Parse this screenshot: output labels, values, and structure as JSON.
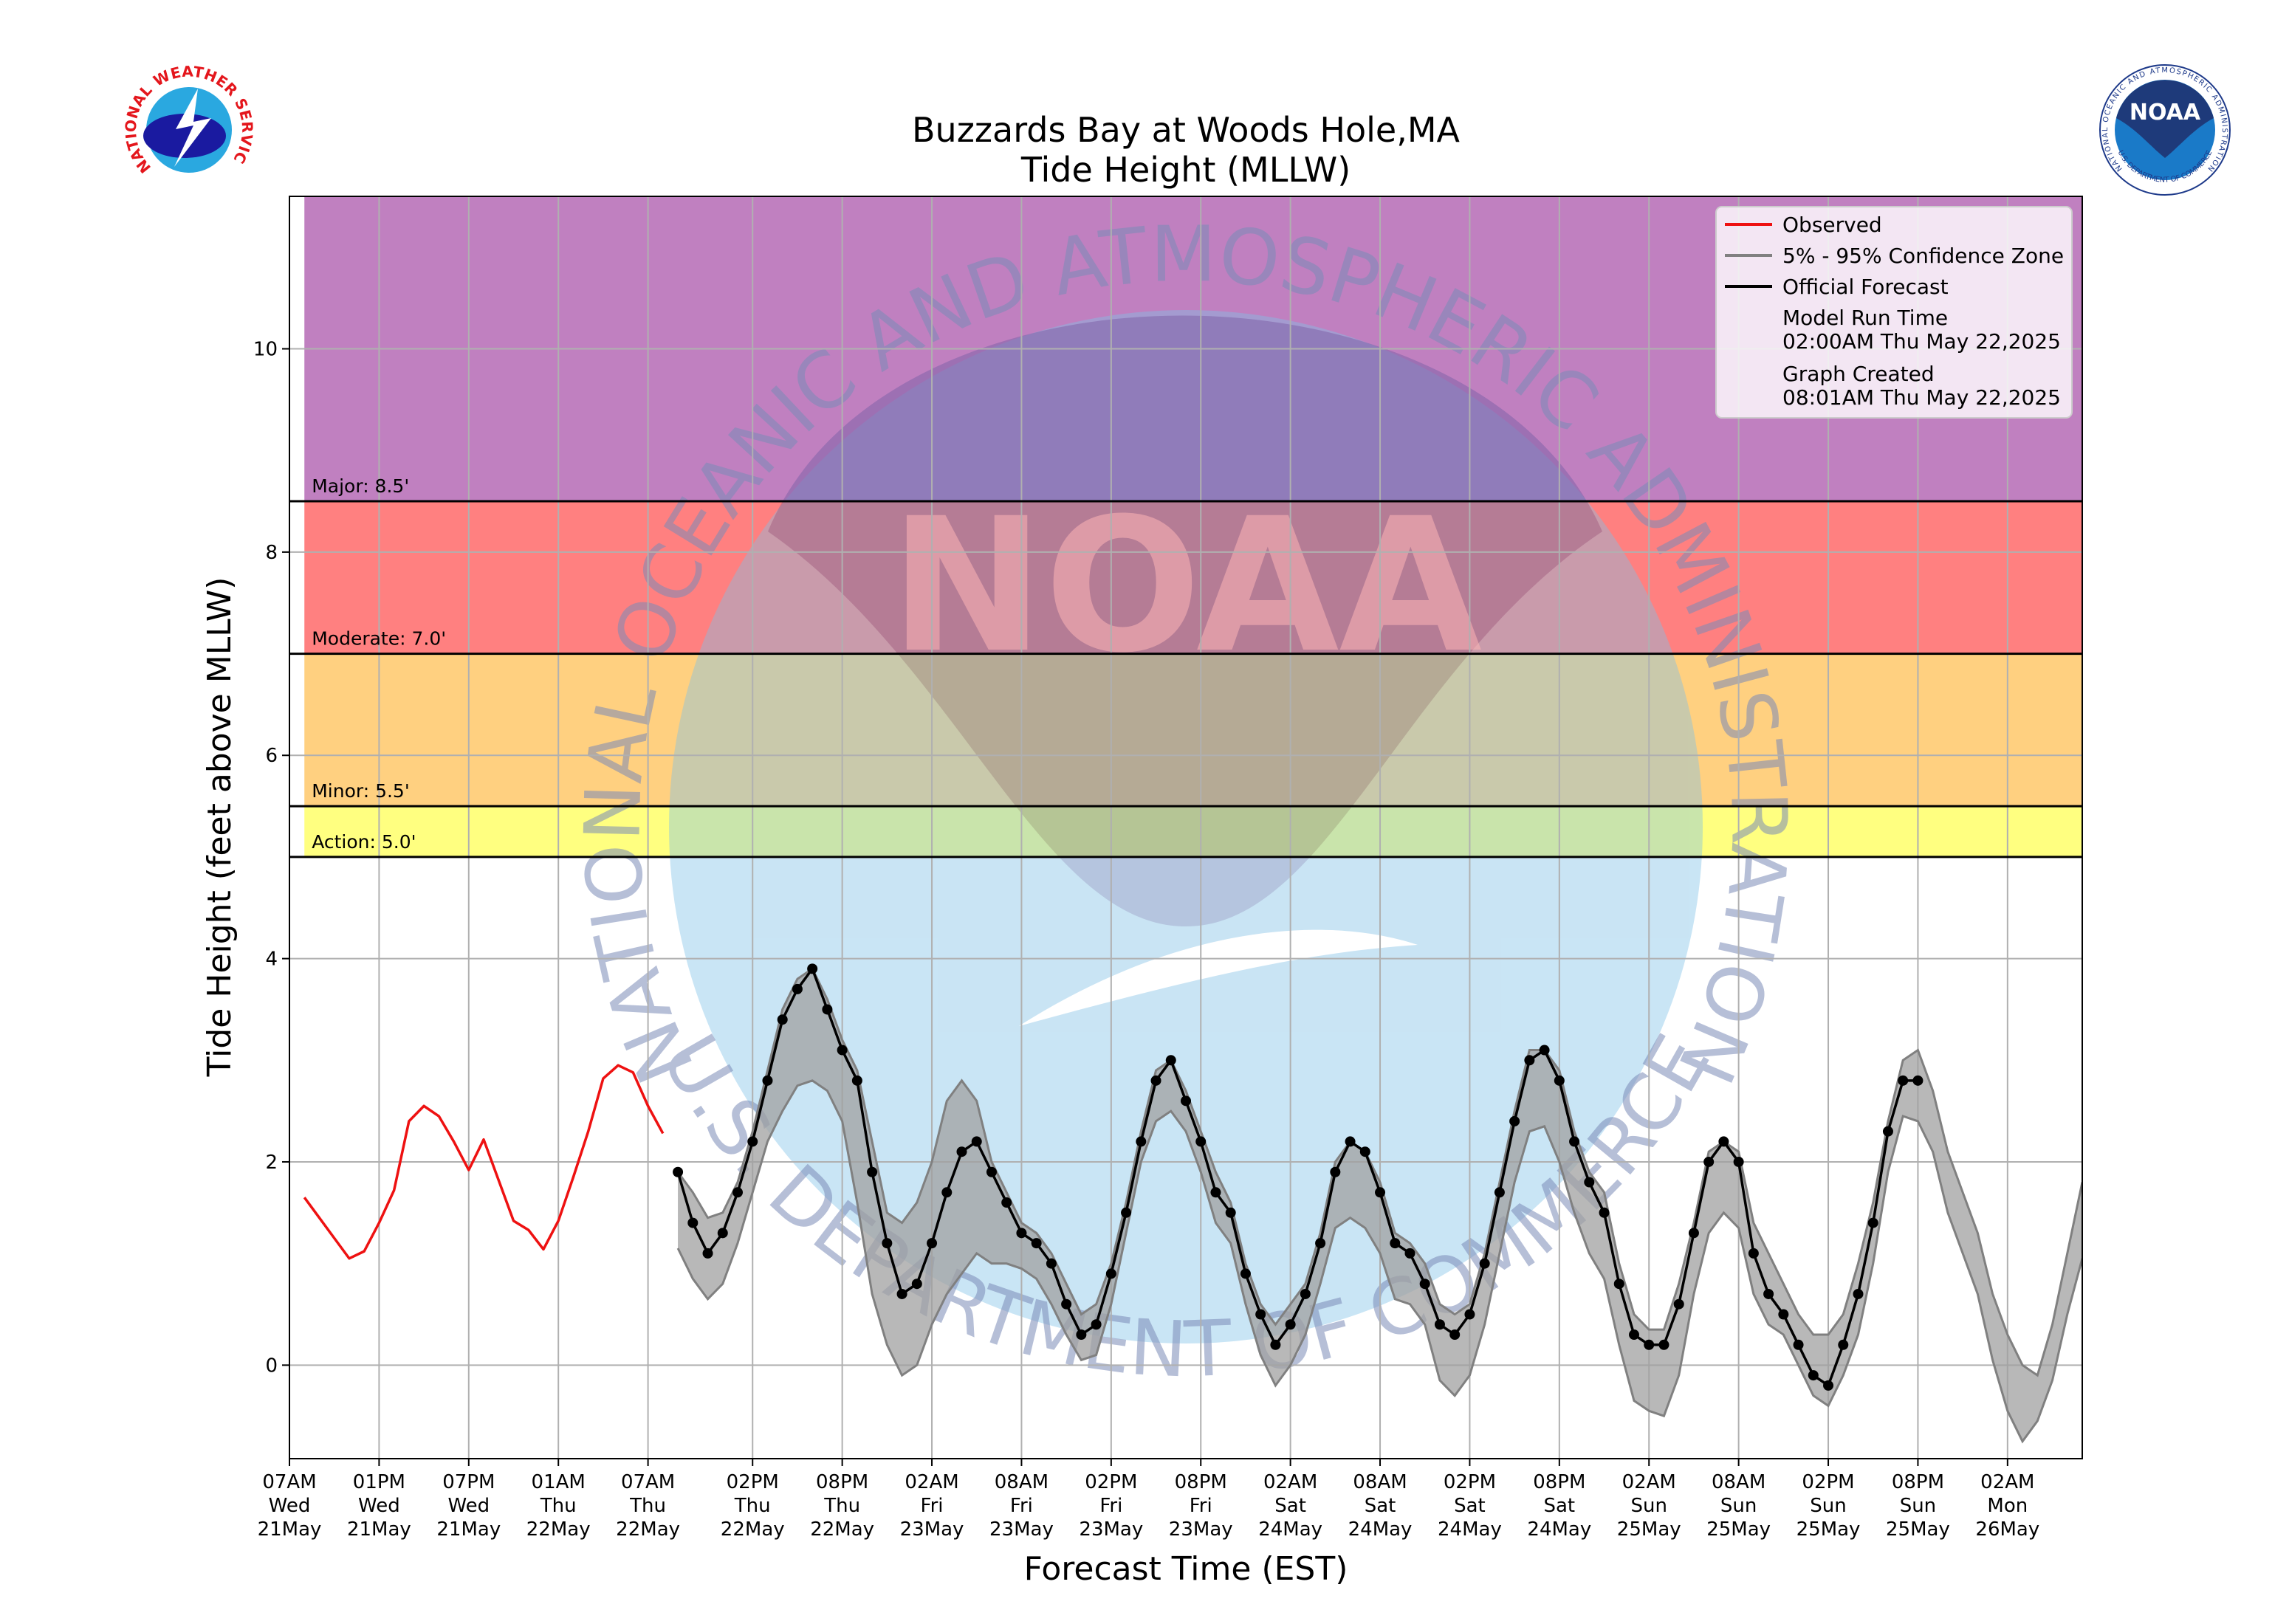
{
  "chart_data": {
    "type": "line",
    "title": "Buzzards Bay at Woods Hole,MA",
    "subtitle": "Tide Height (MLLW)",
    "x_label": "Forecast Time (EST)",
    "y_label": "Tide Height (feet above MLLW)",
    "xlim": [
      "May 21 07:00",
      "May 26 07:00"
    ],
    "ylim": [
      -0.92,
      11.5
    ],
    "yticks": [
      0,
      2,
      4,
      6,
      8,
      10
    ],
    "grid": true,
    "legend": "upper right",
    "xticks": [
      {
        "value": "May 21 07:00",
        "label": "07AM\nWed\n21May"
      },
      {
        "value": "May 21 13:00",
        "label": "01PM\nWed\n21May"
      },
      {
        "value": "May 21 19:00",
        "label": "07PM\nWed\n21May"
      },
      {
        "value": "May 22 01:00",
        "label": "01AM\nThu\n22May"
      },
      {
        "value": "May 22 07:00",
        "label": "07AM\nThu\n22May"
      },
      {
        "value": "May 22 14:00",
        "label": "02PM\nThu\n22May"
      },
      {
        "value": "May 22 20:00",
        "label": "08PM\nThu\n22May"
      },
      {
        "value": "May 23 02:00",
        "label": "02AM\nFri\n23May"
      },
      {
        "value": "May 23 08:00",
        "label": "08AM\nFri\n23May"
      },
      {
        "value": "May 23 14:00",
        "label": "02PM\nFri\n23May"
      },
      {
        "value": "May 23 20:00",
        "label": "08PM\nFri\n23May"
      },
      {
        "value": "May 24 02:00",
        "label": "02AM\nSat\n24May"
      },
      {
        "value": "May 24 08:00",
        "label": "08AM\nSat\n24May"
      },
      {
        "value": "May 24 14:00",
        "label": "02PM\nSat\n24May"
      },
      {
        "value": "May 24 20:00",
        "label": "08PM\nSat\n24May"
      },
      {
        "value": "May 25 02:00",
        "label": "02AM\nSun\n25May"
      },
      {
        "value": "May 25 08:00",
        "label": "08AM\nSun\n25May"
      },
      {
        "value": "May 25 14:00",
        "label": "02PM\nSun\n25May"
      },
      {
        "value": "May 25 20:00",
        "label": "08PM\nSun\n25May"
      },
      {
        "value": "May 26 02:00",
        "label": "02AM\nMon\n26May"
      }
    ],
    "thresholds": [
      {
        "label": "Action: 5.0'",
        "value": 5.0,
        "color": "#ffff80"
      },
      {
        "label": "Minor: 5.5'",
        "value": 5.5,
        "color": "#ffd080"
      },
      {
        "label": "Moderate: 7.0'",
        "value": 7.0,
        "color": "#ff8080"
      },
      {
        "label": "Major: 8.5'",
        "value": 8.5,
        "color": "#c080c0"
      }
    ],
    "x": [
      "May 21 08:00",
      "May 21 09:00",
      "May 21 10:00",
      "May 21 11:00",
      "May 21 12:00",
      "May 21 13:00",
      "May 21 14:00",
      "May 21 15:00",
      "May 21 16:00",
      "May 21 17:00",
      "May 21 18:00",
      "May 21 19:00",
      "May 21 20:00",
      "May 21 21:00",
      "May 21 22:00",
      "May 21 23:00",
      "May 22 00:00",
      "May 22 01:00",
      "May 22 02:00",
      "May 22 03:00",
      "May 22 04:00",
      "May 22 05:00",
      "May 22 06:00",
      "May 22 07:00",
      "May 22 08:00",
      "May 22 09:00",
      "May 22 10:00",
      "May 22 11:00",
      "May 22 12:00",
      "May 22 13:00",
      "May 22 14:00",
      "May 22 15:00",
      "May 22 16:00",
      "May 22 17:00",
      "May 22 18:00",
      "May 22 19:00",
      "May 22 20:00",
      "May 22 21:00",
      "May 22 22:00",
      "May 22 23:00",
      "May 23 00:00",
      "May 23 01:00",
      "May 23 02:00",
      "May 23 03:00",
      "May 23 04:00",
      "May 23 05:00",
      "May 23 06:00",
      "May 23 07:00",
      "May 23 08:00",
      "May 23 09:00",
      "May 23 10:00",
      "May 23 11:00",
      "May 23 12:00",
      "May 23 13:00",
      "May 23 14:00",
      "May 23 15:00",
      "May 23 16:00",
      "May 23 17:00",
      "May 23 18:00",
      "May 23 19:00",
      "May 23 20:00",
      "May 23 21:00",
      "May 23 22:00",
      "May 23 23:00",
      "May 24 00:00",
      "May 24 01:00",
      "May 24 02:00",
      "May 24 03:00",
      "May 24 04:00",
      "May 24 05:00",
      "May 24 06:00",
      "May 24 07:00",
      "May 24 08:00",
      "May 24 09:00",
      "May 24 10:00",
      "May 24 11:00",
      "May 24 12:00",
      "May 24 13:00",
      "May 24 14:00",
      "May 24 15:00",
      "May 24 16:00",
      "May 24 17:00",
      "May 24 18:00",
      "May 24 19:00",
      "May 24 20:00",
      "May 24 21:00",
      "May 24 22:00",
      "May 24 23:00",
      "May 25 00:00",
      "May 25 01:00",
      "May 25 02:00",
      "May 25 03:00",
      "May 25 04:00",
      "May 25 05:00",
      "May 25 06:00",
      "May 25 07:00",
      "May 25 08:00",
      "May 25 09:00",
      "May 25 10:00",
      "May 25 11:00",
      "May 25 12:00",
      "May 25 13:00",
      "May 25 14:00",
      "May 25 15:00",
      "May 25 16:00",
      "May 25 17:00",
      "May 25 18:00",
      "May 25 19:00",
      "May 25 20:00",
      "May 25 21:00",
      "May 25 22:00",
      "May 25 23:00",
      "May 26 00:00",
      "May 26 01:00",
      "May 26 02:00",
      "May 26 03:00",
      "May 26 04:00",
      "May 26 05:00",
      "May 26 06:00",
      "May 26 07:00"
    ],
    "series": [
      {
        "name": "Observed",
        "color": "#ee1111",
        "values": [
          1.65,
          1.45,
          1.25,
          1.05,
          1.12,
          1.4,
          1.72,
          2.4,
          2.55,
          2.45,
          2.2,
          1.92,
          2.22,
          1.82,
          1.42,
          1.33,
          1.14,
          1.42,
          1.85,
          2.3,
          2.82,
          2.95,
          2.88,
          2.55,
          2.28,
          null,
          null,
          null,
          null,
          null,
          null,
          null,
          null,
          null,
          null,
          null,
          null,
          null,
          null,
          null,
          null,
          null,
          null,
          null,
          null,
          null,
          null,
          null,
          null,
          null,
          null,
          null,
          null,
          null,
          null,
          null,
          null,
          null,
          null,
          null,
          null,
          null,
          null,
          null,
          null,
          null,
          null,
          null,
          null,
          null,
          null,
          null,
          null,
          null,
          null,
          null,
          null,
          null,
          null,
          null,
          null,
          null,
          null,
          null,
          null,
          null,
          null,
          null,
          null,
          null,
          null,
          null,
          null,
          null,
          null,
          null,
          null,
          null,
          null,
          null,
          null,
          null,
          null,
          null,
          null,
          null,
          null,
          null,
          null,
          null,
          null,
          null,
          null,
          null,
          null,
          null,
          null,
          null,
          null,
          null
        ]
      },
      {
        "name": "5% - 95% Confidence Zone",
        "color": "#808080",
        "lower": [
          null,
          null,
          null,
          null,
          null,
          null,
          null,
          null,
          null,
          null,
          null,
          null,
          null,
          null,
          null,
          null,
          null,
          null,
          null,
          null,
          null,
          null,
          null,
          null,
          null,
          1.15,
          0.85,
          0.65,
          0.8,
          1.2,
          1.7,
          2.2,
          2.5,
          2.75,
          2.8,
          2.7,
          2.4,
          1.6,
          0.7,
          0.2,
          -0.1,
          0,
          0.4,
          0.7,
          0.9,
          1.1,
          1.0,
          1.0,
          0.95,
          0.85,
          0.6,
          0.3,
          0.05,
          0.1,
          0.6,
          1.3,
          2.0,
          2.4,
          2.5,
          2.3,
          1.9,
          1.4,
          1.2,
          0.6,
          0.1,
          -0.2,
          0,
          0.3,
          0.8,
          1.35,
          1.45,
          1.35,
          1.1,
          0.65,
          0.6,
          0.4,
          -0.15,
          -0.3,
          -0.1,
          0.4,
          1.1,
          1.8,
          2.3,
          2.35,
          2.0,
          1.5,
          1.1,
          0.85,
          0.2,
          -0.35,
          -0.45,
          -0.5,
          -0.1,
          0.7,
          1.3,
          1.5,
          1.35,
          0.7,
          0.4,
          0.3,
          0,
          -0.3,
          -0.4,
          -0.1,
          0.3,
          1.0,
          1.9,
          2.45,
          2.4,
          2.1,
          1.5,
          1.1,
          0.7,
          0.05,
          -0.45,
          -0.75,
          -0.55,
          -0.15,
          0.5,
          1.05
        ],
        "upper": [
          null,
          null,
          null,
          null,
          null,
          null,
          null,
          null,
          null,
          null,
          null,
          null,
          null,
          null,
          null,
          null,
          null,
          null,
          null,
          null,
          null,
          null,
          null,
          null,
          null,
          1.9,
          1.7,
          1.45,
          1.5,
          1.8,
          2.3,
          2.9,
          3.5,
          3.8,
          3.9,
          3.6,
          3.2,
          2.9,
          2.2,
          1.5,
          1.4,
          1.6,
          2.0,
          2.6,
          2.8,
          2.6,
          2.0,
          1.7,
          1.4,
          1.3,
          1.1,
          0.8,
          0.5,
          0.6,
          1.0,
          1.6,
          2.3,
          2.9,
          3.0,
          2.7,
          2.3,
          1.9,
          1.6,
          1.0,
          0.6,
          0.4,
          0.6,
          0.8,
          1.3,
          2.0,
          2.2,
          2.1,
          1.8,
          1.3,
          1.2,
          1.0,
          0.6,
          0.5,
          0.6,
          1.1,
          1.8,
          2.5,
          3.1,
          3.1,
          2.9,
          2.3,
          1.9,
          1.7,
          1.0,
          0.5,
          0.35,
          0.35,
          0.8,
          1.4,
          2.1,
          2.2,
          2.1,
          1.4,
          1.1,
          0.8,
          0.5,
          0.3,
          0.3,
          0.5,
          1.0,
          1.6,
          2.4,
          3.0,
          3.1,
          2.7,
          2.1,
          1.7,
          1.3,
          0.7,
          0.3,
          0.0,
          -0.1,
          0.4,
          1.1,
          1.8
        ]
      },
      {
        "name": "Official Forecast",
        "color": "#000000",
        "markers": true,
        "values": [
          null,
          null,
          null,
          null,
          null,
          null,
          null,
          null,
          null,
          null,
          null,
          null,
          null,
          null,
          null,
          null,
          null,
          null,
          null,
          null,
          null,
          null,
          null,
          null,
          null,
          1.9,
          1.4,
          1.1,
          1.3,
          1.7,
          2.2,
          2.8,
          3.4,
          3.7,
          3.9,
          3.5,
          3.1,
          2.8,
          1.9,
          1.2,
          0.7,
          0.8,
          1.2,
          1.7,
          2.1,
          2.2,
          1.9,
          1.6,
          1.3,
          1.2,
          1.0,
          0.6,
          0.3,
          0.4,
          0.9,
          1.5,
          2.2,
          2.8,
          3.0,
          2.6,
          2.2,
          1.7,
          1.5,
          0.9,
          0.5,
          0.2,
          0.4,
          0.7,
          1.2,
          1.9,
          2.2,
          2.1,
          1.7,
          1.2,
          1.1,
          0.8,
          0.4,
          0.3,
          0.5,
          1.0,
          1.7,
          2.4,
          3.0,
          3.1,
          2.8,
          2.2,
          1.8,
          1.5,
          0.8,
          0.3,
          0.2,
          0.2,
          0.6,
          1.3,
          2.0,
          2.2,
          2.0,
          1.1,
          0.7,
          0.5,
          0.2,
          -0.1,
          -0.2,
          0.2,
          0.7,
          1.4,
          2.3,
          2.8,
          2.8,
          null,
          null,
          null,
          null,
          null,
          null,
          null,
          null,
          null,
          null,
          null
        ]
      }
    ],
    "legend_notes": [
      {
        "label": "Model Run Time",
        "value": "02:00AM Thu May 22,2025"
      },
      {
        "label": "Graph Created",
        "value": "08:01AM Thu May 22,2025"
      }
    ]
  },
  "watermark": {
    "arc_top": "NATIONAL OCEANIC AND ATMOSPHERIC ADMINISTRATION",
    "arc_bottom": "U.S. DEPARTMENT OF COMMERCE",
    "center": "NOAA"
  },
  "logos": {
    "left": "NATIONAL WEATHER SERVICE"
  }
}
